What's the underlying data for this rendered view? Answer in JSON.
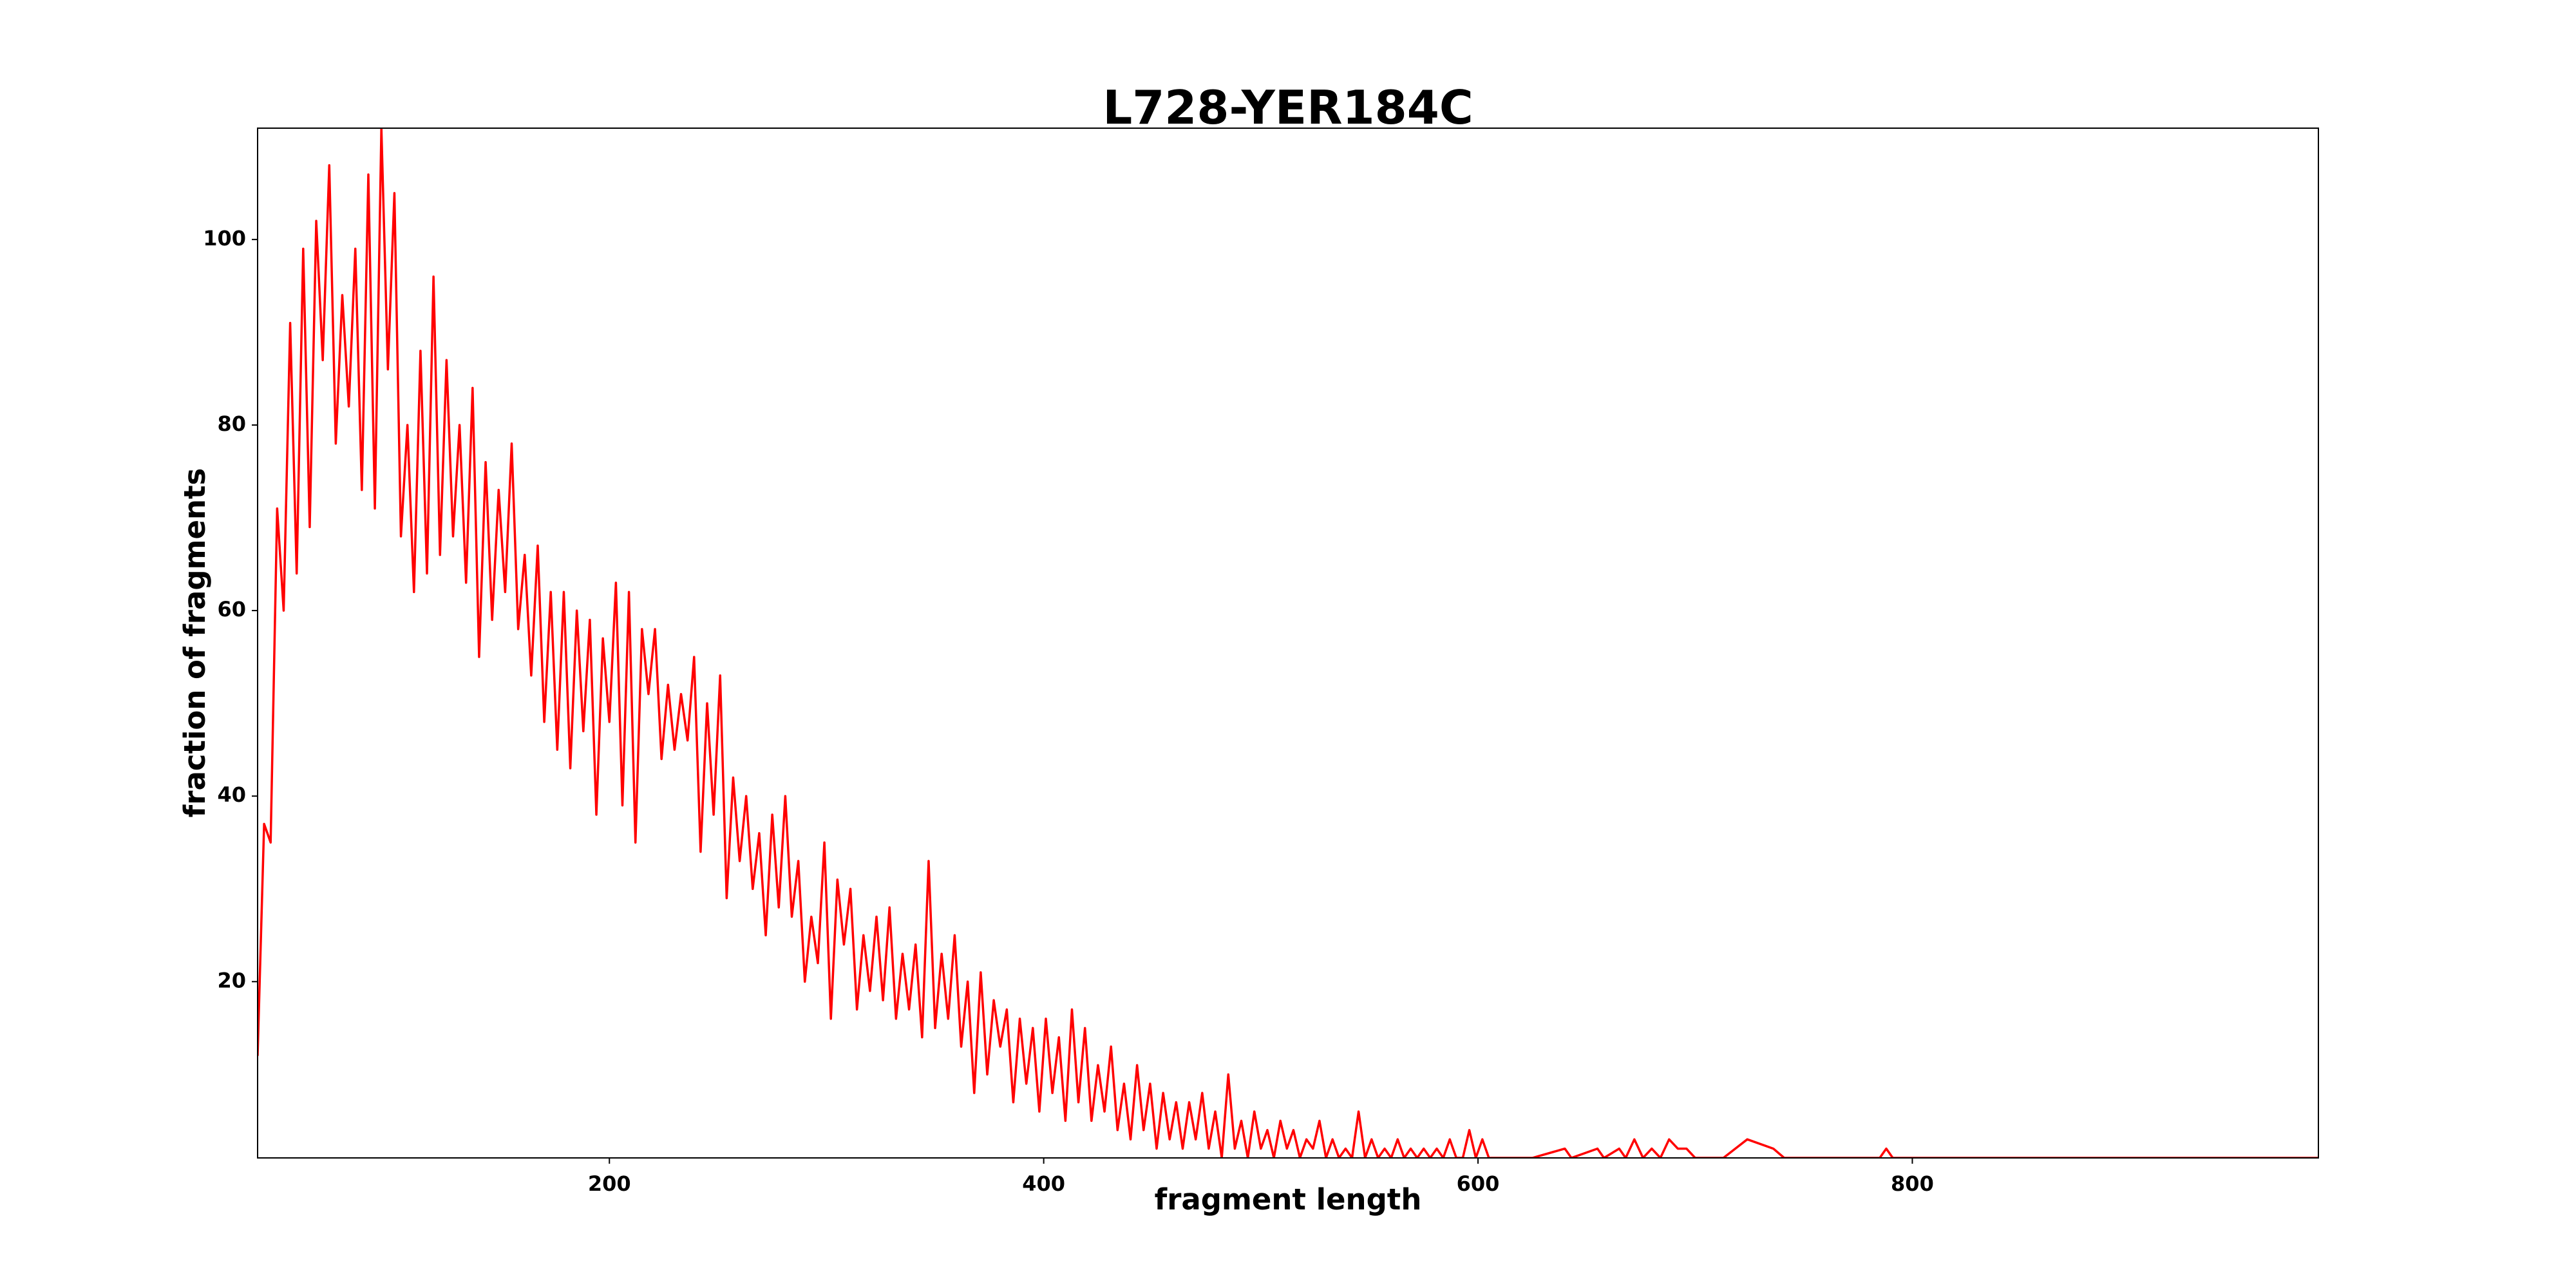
{
  "chart_data": {
    "type": "line",
    "title": "L728-YER184C",
    "x_label": "fragment length",
    "y_label": "fraction of fragments",
    "color": "#ff0000",
    "x": [
      38,
      41,
      44,
      47,
      50,
      53,
      56,
      59,
      62,
      65,
      68,
      71,
      74,
      77,
      80,
      83,
      86,
      89,
      92,
      95,
      98,
      101,
      104,
      107,
      110,
      113,
      116,
      119,
      122,
      125,
      128,
      131,
      134,
      137,
      140,
      143,
      146,
      149,
      152,
      155,
      158,
      161,
      164,
      167,
      170,
      173,
      176,
      179,
      182,
      185,
      188,
      191,
      194,
      197,
      200,
      203,
      206,
      209,
      212,
      215,
      218,
      221,
      224,
      227,
      230,
      233,
      236,
      239,
      242,
      245,
      248,
      251,
      254,
      257,
      260,
      263,
      266,
      269,
      272,
      275,
      278,
      281,
      284,
      287,
      290,
      293,
      296,
      299,
      302,
      305,
      308,
      311,
      314,
      317,
      320,
      323,
      326,
      329,
      332,
      335,
      338,
      341,
      344,
      347,
      350,
      353,
      356,
      359,
      362,
      365,
      368,
      371,
      374,
      377,
      380,
      383,
      386,
      389,
      392,
      395,
      398,
      401,
      404,
      407,
      410,
      413,
      416,
      419,
      422,
      425,
      428,
      431,
      434,
      437,
      440,
      443,
      446,
      449,
      452,
      455,
      458,
      461,
      464,
      467,
      470,
      473,
      476,
      479,
      482,
      485,
      488,
      491,
      494,
      497,
      500,
      503,
      506,
      509,
      512,
      515,
      518,
      521,
      524,
      527,
      530,
      533,
      536,
      539,
      542,
      545,
      548,
      551,
      554,
      557,
      560,
      563,
      566,
      569,
      572,
      575,
      578,
      581,
      584,
      587,
      590,
      593,
      596,
      599,
      602,
      605,
      608,
      625,
      640,
      643,
      655,
      658,
      665,
      668,
      672,
      676,
      680,
      684,
      688,
      692,
      696,
      700,
      713,
      724,
      736,
      741,
      785,
      788,
      791,
      987
    ],
    "values": [
      12,
      37,
      35,
      71,
      60,
      91,
      64,
      99,
      69,
      102,
      87,
      108,
      78,
      94,
      82,
      99,
      73,
      107,
      71,
      112,
      86,
      105,
      68,
      80,
      62,
      88,
      64,
      96,
      66,
      87,
      68,
      80,
      63,
      84,
      55,
      76,
      59,
      73,
      62,
      78,
      58,
      66,
      53,
      67,
      48,
      62,
      45,
      62,
      43,
      60,
      47,
      59,
      38,
      57,
      48,
      63,
      39,
      62,
      35,
      58,
      51,
      58,
      44,
      52,
      45,
      51,
      46,
      55,
      34,
      50,
      38,
      53,
      29,
      42,
      33,
      40,
      30,
      36,
      25,
      38,
      28,
      40,
      27,
      33,
      20,
      27,
      22,
      35,
      16,
      31,
      24,
      30,
      17,
      25,
      19,
      27,
      18,
      28,
      16,
      23,
      17,
      24,
      14,
      33,
      15,
      23,
      16,
      25,
      13,
      20,
      8,
      21,
      10,
      18,
      13,
      17,
      7,
      16,
      9,
      15,
      6,
      16,
      8,
      14,
      5,
      17,
      7,
      15,
      5,
      11,
      6,
      13,
      4,
      9,
      3,
      11,
      4,
      9,
      2,
      8,
      3,
      7,
      2,
      7,
      3,
      8,
      2,
      6,
      1,
      10,
      2,
      5,
      1,
      6,
      2,
      4,
      1,
      5,
      2,
      4,
      1,
      3,
      2,
      5,
      1,
      3,
      1,
      2,
      1,
      6,
      1,
      3,
      1,
      2,
      1,
      3,
      1,
      2,
      1,
      2,
      1,
      2,
      1,
      3,
      1,
      1,
      4,
      1,
      3,
      1,
      1,
      1,
      2,
      1,
      2,
      1,
      2,
      1,
      3,
      1,
      2,
      1,
      3,
      2,
      2,
      1,
      1,
      3,
      2,
      1,
      1,
      2,
      1,
      1
    ],
    "xlim": [
      38,
      987
    ],
    "ylim": [
      1,
      112
    ],
    "xticks": [
      200,
      400,
      600,
      800
    ],
    "yticks": [
      20,
      40,
      60,
      80,
      100
    ]
  }
}
